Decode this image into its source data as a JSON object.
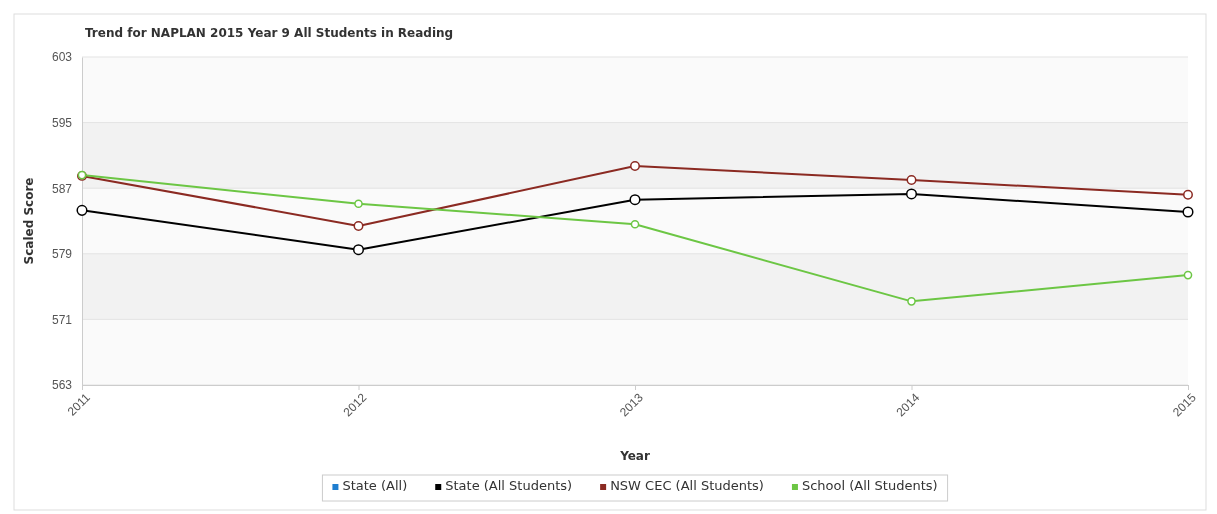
{
  "chart_data": {
    "type": "line",
    "title": "Trend for NAPLAN 2015 Year 9 All Students in Reading",
    "xlabel": "Year",
    "ylabel": "Scaled Score",
    "categories": [
      "2011",
      "2012",
      "2013",
      "2014",
      "2015"
    ],
    "series": [
      {
        "name": "State (All)",
        "color": "#1f7ed0",
        "values": [
          null,
          null,
          null,
          null,
          null
        ]
      },
      {
        "name": "State (All Students)",
        "color": "#000000",
        "values": [
          584.3,
          579.5,
          585.6,
          586.3,
          584.1
        ]
      },
      {
        "name": "NSW CEC (All Students)",
        "color": "#8b2a22",
        "values": [
          588.5,
          582.4,
          589.7,
          588.0,
          586.2
        ]
      },
      {
        "name": "School (All Students)",
        "color": "#6cc644",
        "values": [
          588.6,
          585.1,
          582.6,
          573.2,
          576.4
        ]
      }
    ],
    "ylim": [
      563,
      603
    ],
    "yticks": [
      563,
      571,
      579,
      587,
      595,
      603
    ],
    "bands": [
      {
        "axis": "y",
        "from": 571,
        "to": 579,
        "color": "#f2f2f2"
      },
      {
        "axis": "y",
        "from": 587,
        "to": 595,
        "color": "#f2f2f2"
      }
    ],
    "grid": "y",
    "legend": "bottom",
    "marker": "circle",
    "line_style": "solid"
  }
}
